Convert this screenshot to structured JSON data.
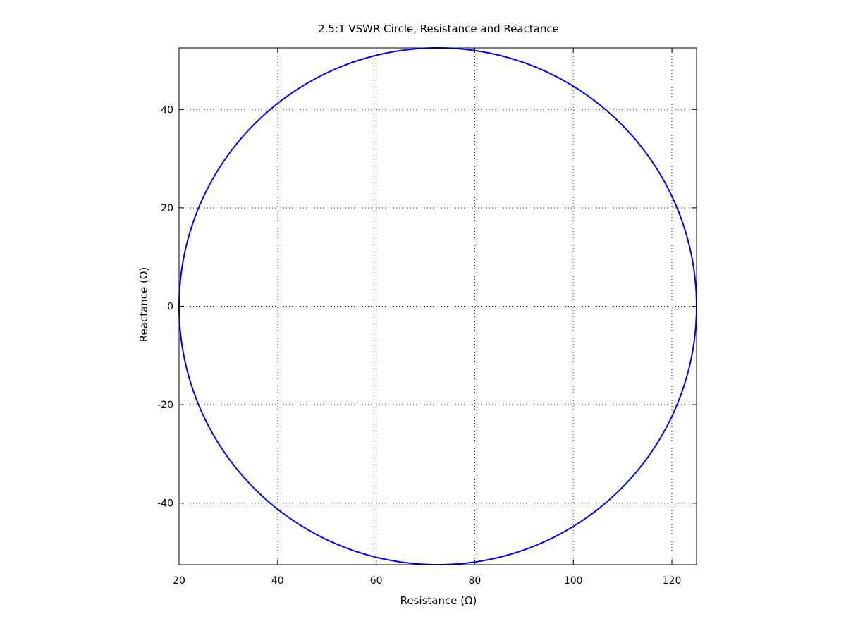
{
  "chart_data": {
    "type": "line",
    "title": "2.5:1 VSWR Circle, Resistance and Reactance",
    "xlabel": "Resistance (Ω)",
    "ylabel": "Reactance (Ω)",
    "xlim": [
      20,
      125
    ],
    "ylim": [
      -52.5,
      52.5
    ],
    "xticks": [
      20,
      40,
      60,
      80,
      100,
      120
    ],
    "yticks": [
      -40,
      -20,
      0,
      20,
      40
    ],
    "x_tick_labels": [
      "20",
      "40",
      "60",
      "80",
      "100",
      "120"
    ],
    "y_tick_labels": [
      "-40",
      "-20",
      "0",
      "20",
      "40"
    ],
    "grid": true,
    "series": [
      {
        "color": "#0000ff",
        "shape": "circle",
        "center": [
          72.5,
          0
        ],
        "radius": 52.5,
        "x": [
          125,
          122.5,
          115.2,
          103.4,
          88.7,
          72.5,
          56.3,
          41.6,
          29.8,
          22.5,
          20,
          22.5,
          29.8,
          41.6,
          56.3,
          72.5,
          88.7,
          103.4,
          115.2,
          122.5,
          125
        ],
        "y": [
          0,
          16.2,
          30.9,
          42.5,
          49.9,
          52.5,
          49.9,
          42.5,
          30.9,
          16.2,
          0,
          -16.2,
          -30.9,
          -42.5,
          -49.9,
          -52.5,
          -49.9,
          -42.5,
          -30.9,
          -16.2,
          0
        ]
      }
    ]
  }
}
